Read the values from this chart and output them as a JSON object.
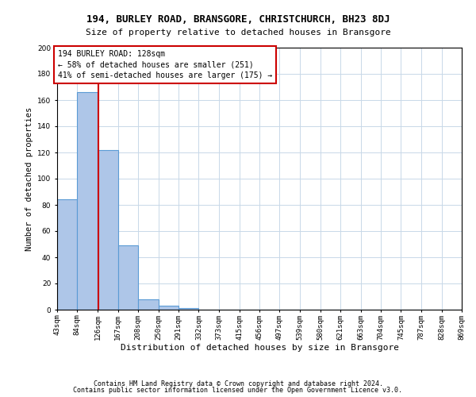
{
  "title": "194, BURLEY ROAD, BRANSGORE, CHRISTCHURCH, BH23 8DJ",
  "subtitle": "Size of property relative to detached houses in Bransgore",
  "xlabel": "Distribution of detached houses by size in Bransgore",
  "ylabel": "Number of detached properties",
  "bin_edges": [
    43,
    84,
    126,
    167,
    208,
    250,
    291,
    332,
    373,
    415,
    456,
    497,
    539,
    580,
    621,
    663,
    704,
    745,
    787,
    828,
    869
  ],
  "bar_heights": [
    84,
    166,
    122,
    49,
    8,
    3,
    1,
    0,
    0,
    0,
    0,
    0,
    0,
    0,
    0,
    0,
    0,
    0,
    0,
    0
  ],
  "bar_color": "#aec6e8",
  "bar_edge_color": "#5b9bd5",
  "property_size": 128,
  "red_line_color": "#cc0000",
  "annotation_line1": "194 BURLEY ROAD: 128sqm",
  "annotation_line2": "← 58% of detached houses are smaller (251)",
  "annotation_line3": "41% of semi-detached houses are larger (175) →",
  "ylim": [
    0,
    200
  ],
  "yticks": [
    0,
    20,
    40,
    60,
    80,
    100,
    120,
    140,
    160,
    180,
    200
  ],
  "footer1": "Contains HM Land Registry data © Crown copyright and database right 2024.",
  "footer2": "Contains public sector information licensed under the Open Government Licence v3.0.",
  "background_color": "#ffffff",
  "grid_color": "#c8d8e8",
  "title_fontsize": 9,
  "subtitle_fontsize": 8,
  "tick_fontsize": 6.5,
  "ylabel_fontsize": 7.5,
  "xlabel_fontsize": 8,
  "annotation_fontsize": 7,
  "footer_fontsize": 6
}
